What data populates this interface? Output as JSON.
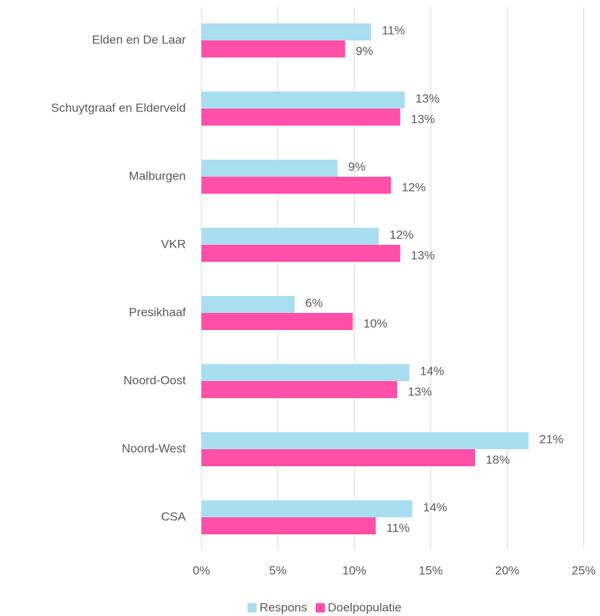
{
  "chart_data": {
    "type": "barh",
    "categories": [
      "Elden en De Laar",
      "Schuytgraaf en Elderveld",
      "Malburgen",
      "VKR",
      "Presikhaaf",
      "Noord-Oost",
      "Noord-West",
      "CSA"
    ],
    "series": [
      {
        "name": "Respons",
        "color": "#a9def0",
        "values": [
          11.1,
          13.3,
          8.9,
          11.6,
          6.1,
          13.6,
          21.4,
          13.8
        ],
        "value_labels": [
          "11%",
          "13%",
          "9%",
          "12%",
          "6%",
          "14%",
          "21%",
          "14%"
        ]
      },
      {
        "name": "Doelpopulatie",
        "color": "#ff4fa7",
        "values": [
          9.4,
          13.0,
          12.4,
          13.0,
          9.9,
          12.8,
          17.9,
          11.4
        ],
        "value_labels": [
          "9%",
          "13%",
          "12%",
          "13%",
          "10%",
          "13%",
          "18%",
          "11%"
        ]
      }
    ],
    "xlim": [
      0,
      25
    ],
    "xticks": [
      {
        "value": 0,
        "label": "0%"
      },
      {
        "value": 5,
        "label": "5%"
      },
      {
        "value": 10,
        "label": "10%"
      },
      {
        "value": 15,
        "label": "15%"
      },
      {
        "value": 20,
        "label": "20%"
      },
      {
        "value": 25,
        "label": "25%"
      }
    ],
    "grid": true,
    "legend": "bottom"
  }
}
